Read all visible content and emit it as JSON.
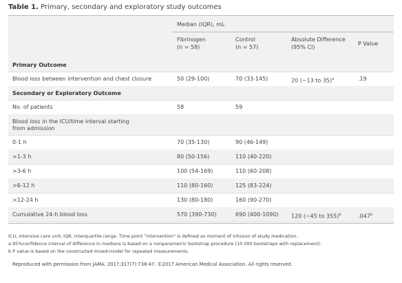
{
  "title": {
    "label": "Table 1.",
    "text": "Primary, secondary and exploratory study outcomes"
  },
  "header": {
    "group": "Median (IQR), mL",
    "columns": [
      [
        "Fibrinogen",
        "(n = 58)"
      ],
      [
        "Control",
        "(n = 57)"
      ],
      [
        "Absolute Difference",
        "(95% CI)"
      ],
      [
        "P Value"
      ]
    ]
  },
  "rows": [
    {
      "section": "Primary Outcome"
    },
    {
      "cells": [
        {
          "text": "Blood loss between intervention and chest closure"
        },
        {
          "text": "50 (29-100)"
        },
        {
          "text": "70 (33-145)"
        },
        {
          "text": "20 (−13 to 35)",
          "note": "a"
        },
        {
          "text": ".19"
        }
      ]
    },
    {
      "section": "Secondary or Exploratory Outcome"
    },
    {
      "cells": [
        {
          "text": "No. of patients"
        },
        {
          "text": "58"
        },
        {
          "text": "59"
        }
      ]
    },
    {
      "cells": [
        {
          "text": "Blood loss in the ICU/time interval starting from admission"
        }
      ]
    },
    {
      "cells": [
        {
          "text": "0-1 h"
        },
        {
          "text": "70 (35-130)"
        },
        {
          "text": "90 (46-149)"
        }
      ]
    },
    {
      "cells": [
        {
          "text": ">1-3 h"
        },
        {
          "text": "80 (50-156)"
        },
        {
          "text": "110 (40-220)"
        }
      ]
    },
    {
      "cells": [
        {
          "text": ">3-6 h"
        },
        {
          "text": "100 (54-169)"
        },
        {
          "text": "110 (60-208)"
        }
      ]
    },
    {
      "cells": [
        {
          "text": ">6-12 h"
        },
        {
          "text": "110 (80-160)"
        },
        {
          "text": "125 (83-224)"
        }
      ]
    },
    {
      "cells": [
        {
          "text": ">12-24 h"
        },
        {
          "text": "130 (80-180)"
        },
        {
          "text": "160 (90-270)"
        }
      ]
    },
    {
      "cells": [
        {
          "text": "Cumulative 24-h blood loss"
        },
        {
          "text": "570 (390-730)"
        },
        {
          "text": "690 (400-1090)"
        },
        {
          "text": "120 (−45 to 355)",
          "note": "b"
        },
        {
          "text": ".047",
          "note": "b"
        }
      ]
    }
  ],
  "footnotes": [
    "ICU, intensive care unit; IQR, interquartile range. Time point \"intervention\" is defined as moment of infusion of study medication.",
    "a 95%confidence interval of difference in medians is based on a nonparametric bootstrap procedure (10 000 bootstraps with replacement).",
    "b P value is based on the constructed mixed-model for repeated measurements."
  ],
  "credit": "Reproduced with permission from JAMA. 2017;317(7):738-47. ©2017 American Medical Association. All rights reserved."
}
